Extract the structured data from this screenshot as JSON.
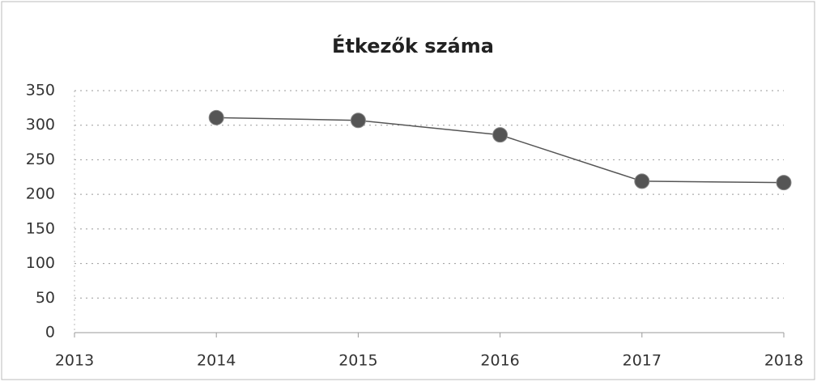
{
  "chart_data": {
    "type": "line",
    "title": "Étkezők száma",
    "x": [
      2014,
      2015,
      2016,
      2017,
      2018
    ],
    "series": [
      {
        "name": "Étkezők",
        "color": "#555555",
        "values": [
          311,
          307,
          286,
          219,
          217
        ]
      }
    ],
    "xlim": [
      2013,
      2018
    ],
    "xticks": [
      2013,
      2014,
      2015,
      2016,
      2017,
      2018
    ],
    "ylim": [
      0,
      350
    ],
    "yticks": [
      0,
      50,
      100,
      150,
      200,
      250,
      300,
      350
    ],
    "grid": true
  }
}
